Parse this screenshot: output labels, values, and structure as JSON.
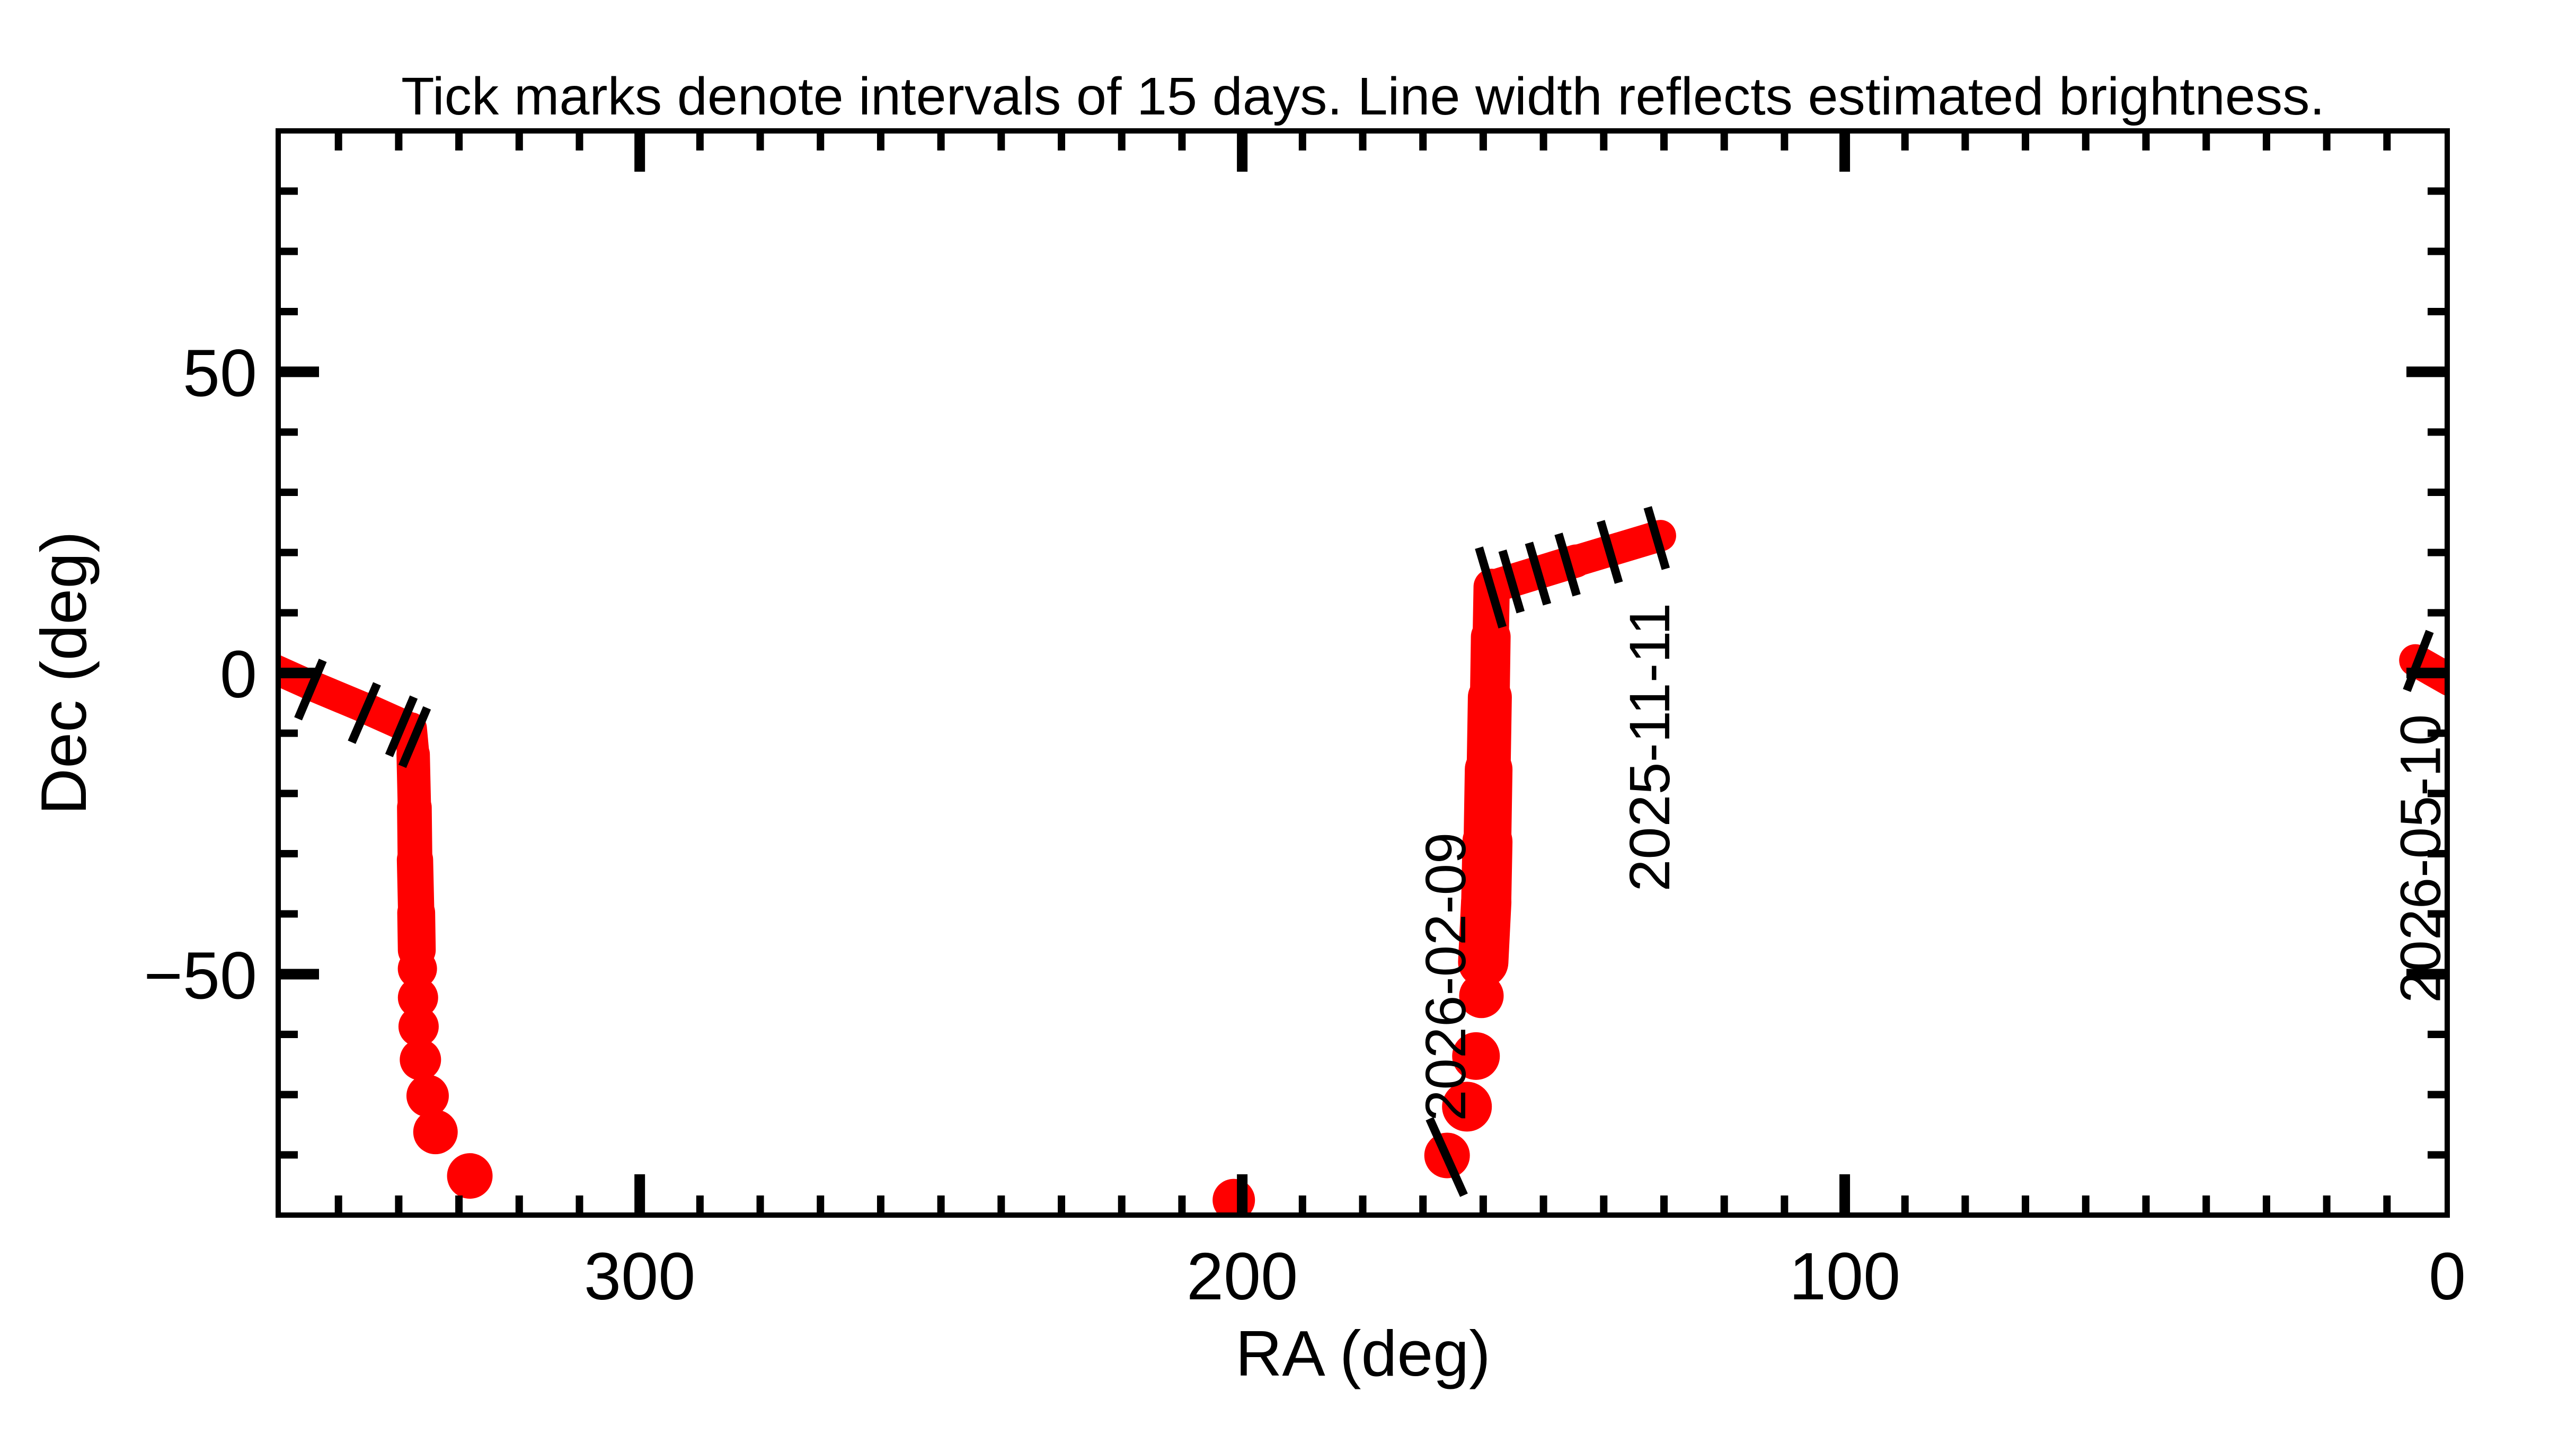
{
  "title": "Tick marks denote intervals of 15 days.  Line width reflects estimated brightness.",
  "chart_data": {
    "type": "scatter",
    "title": "Tick marks denote intervals of 15 days.  Line width reflects estimated brightness.",
    "xlabel": "RA (deg)",
    "ylabel": "Dec (deg)",
    "xlim": [
      360,
      0
    ],
    "ylim": [
      -90,
      90
    ],
    "x_axis_reversed": true,
    "grid": false,
    "x_major_ticks": [
      300,
      200,
      100,
      0
    ],
    "x_major_tick_labels": [
      "300",
      "200",
      "100",
      "0"
    ],
    "y_major_ticks": [
      50,
      0,
      -50
    ],
    "y_major_tick_labels": [
      "50",
      "0",
      "−50"
    ],
    "minor_tick_step_deg": 10,
    "time_tick_interval_days": 15,
    "track_color": "#ff0000",
    "axis_color": "#000000",
    "background_color": "#ffffff",
    "track_segments": [
      {
        "name": "north-arc-after-wrap",
        "type": "tapered-line",
        "points": [
          [
            360.5,
            0.6,
            56
          ],
          [
            354.7,
            -2.0,
            57
          ],
          [
            345.6,
            -5.8,
            58
          ],
          [
            338.0,
            -9.2,
            60
          ],
          [
            337.6,
            -13.5,
            62
          ],
          [
            337.4,
            -22.3,
            64
          ],
          [
            337.3,
            -31.0,
            67
          ],
          [
            337.1,
            -39.8,
            70
          ],
          [
            337.0,
            -46.0,
            73
          ]
        ]
      },
      {
        "name": "south-plunge-dots",
        "type": "dots",
        "points": [
          [
            336.9,
            -49.1,
            37
          ],
          [
            336.8,
            -53.9,
            38
          ],
          [
            336.7,
            -58.7,
            38
          ],
          [
            336.4,
            -64.2,
            39
          ],
          [
            335.2,
            -70.2,
            40
          ],
          [
            333.9,
            -76.2,
            42
          ],
          [
            328.2,
            -83.5,
            43
          ]
        ]
      },
      {
        "name": "deep-south-single-dot",
        "type": "dots",
        "points": [
          [
            201.4,
            -87.5,
            40
          ]
        ]
      },
      {
        "name": "perihelion-approach-dots",
        "type": "dots",
        "points": [
          [
            166.0,
            -80.1,
            43
          ],
          [
            162.7,
            -72.0,
            47
          ],
          [
            161.2,
            -63.6,
            45
          ],
          [
            160.3,
            -53.6,
            42
          ]
        ]
      },
      {
        "name": "descending-column",
        "type": "tapered-line",
        "points": [
          [
            160.0,
            -48.0,
            94
          ],
          [
            159.5,
            -38.0,
            96
          ],
          [
            159.3,
            -28.0,
            93
          ],
          [
            159.1,
            -16.0,
            87
          ],
          [
            158.9,
            -4.0,
            79
          ],
          [
            158.75,
            6.0,
            71
          ],
          [
            158.6,
            14.3,
            66
          ]
        ]
      },
      {
        "name": "november-arc",
        "type": "tapered-line",
        "points": [
          [
            158.6,
            14.3,
            64
          ],
          [
            144.6,
            18.6,
            61
          ],
          [
            130.6,
            22.8,
            58
          ]
        ]
      },
      {
        "name": "may-arc-right-edge",
        "type": "tapered-line",
        "points": [
          [
            5.3,
            2.1,
            64
          ],
          [
            -0.5,
            -1.2,
            58
          ]
        ]
      }
    ],
    "time_tick_marks": [
      {
        "name": "tick-a1",
        "line": [
          352.6,
          2.1,
          356.7,
          -7.6
        ]
      },
      {
        "name": "tick-a2",
        "line": [
          343.6,
          -1.8,
          347.8,
          -11.5
        ]
      },
      {
        "name": "tick-a3",
        "line": [
          337.5,
          -4.0,
          341.6,
          -13.7
        ]
      },
      {
        "name": "tick-a4",
        "line": [
          335.3,
          -5.8,
          339.4,
          -15.5
        ]
      },
      {
        "name": "tick-c1",
        "line": [
          160.7,
          20.8,
          156.8,
          7.6
        ]
      },
      {
        "name": "tick-c2",
        "line": [
          156.8,
          20.3,
          153.8,
          10.1
        ]
      },
      {
        "name": "tick-c3",
        "line": [
          152.4,
          21.6,
          149.4,
          11.4
        ]
      },
      {
        "name": "tick-c4",
        "line": [
          147.5,
          23.1,
          144.5,
          12.9
        ]
      },
      {
        "name": "tick-c5",
        "line": [
          140.5,
          25.2,
          137.5,
          15.0
        ]
      },
      {
        "name": "tick-c6",
        "line": [
          132.7,
          27.5,
          129.7,
          17.3
        ]
      },
      {
        "name": "tick-feb",
        "line": [
          168.9,
          -74.0,
          163.2,
          -86.7
        ]
      },
      {
        "name": "tick-may",
        "line": [
          6.7,
          -2.9,
          2.9,
          6.9
        ]
      }
    ],
    "annotations": [
      {
        "text": "2025-11-11",
        "ra": 129.1,
        "dec": -36.3,
        "rotation_deg": -90
      },
      {
        "text": "2026-02-09",
        "ra": 163.0,
        "dec": -74.4,
        "rotation_deg": -90
      },
      {
        "text": "2026-05-10",
        "ra": 1.2,
        "dec": -54.8,
        "rotation_deg": -90
      }
    ]
  }
}
